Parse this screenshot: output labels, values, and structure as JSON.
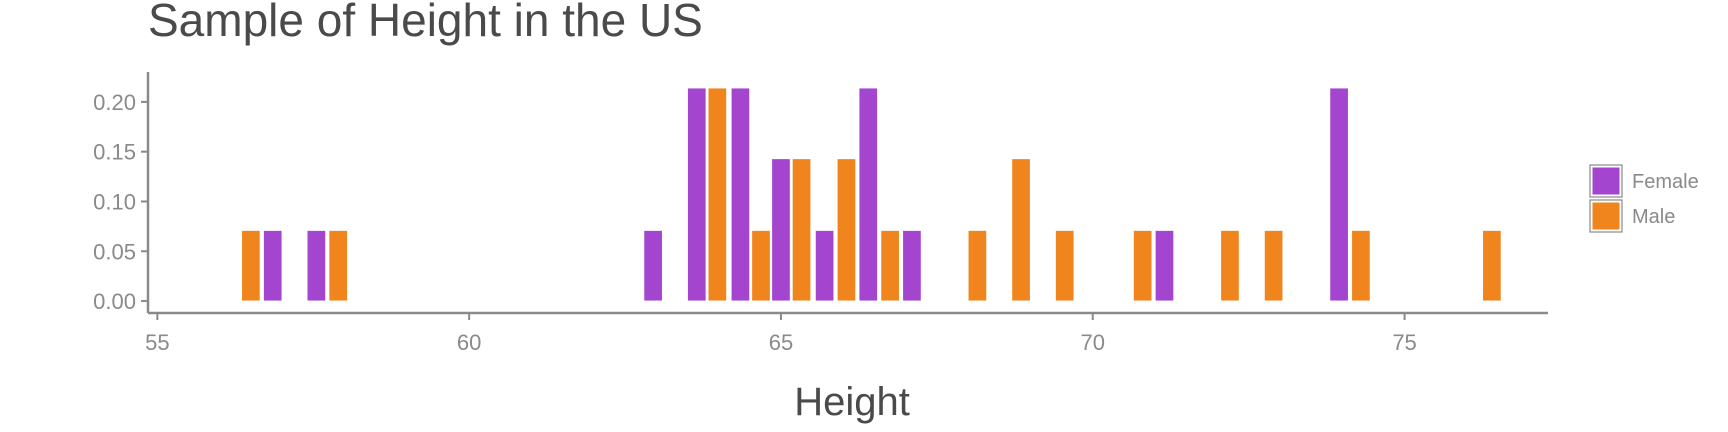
{
  "chart_data": {
    "type": "bar",
    "title": "Sample of Height in the US",
    "xlabel": "Height",
    "ylabel": "",
    "xlim": [
      54.85,
      77.3
    ],
    "ylim": [
      -0.012,
      0.23
    ],
    "xticks": [
      55,
      60,
      65,
      70,
      75
    ],
    "yticks": [
      0.0,
      0.05,
      0.1,
      0.15,
      0.2
    ],
    "ytick_labels": [
      "0.00",
      "0.05",
      "0.10",
      "0.15",
      "0.20"
    ],
    "grid": false,
    "legend_position": "right",
    "bar_width": 0.3,
    "series": [
      {
        "name": "Female",
        "color": "#a445cf",
        "x": [
          56.85,
          57.55,
          62.95,
          63.65,
          64.35,
          65.0,
          65.7,
          66.4,
          67.1,
          71.15,
          73.95
        ],
        "values": [
          0.071,
          0.071,
          0.071,
          0.214,
          0.214,
          0.143,
          0.071,
          0.214,
          0.071,
          0.071,
          0.214
        ]
      },
      {
        "name": "Male",
        "color": "#f0851e",
        "x": [
          56.5,
          57.9,
          63.98,
          64.68,
          65.33,
          66.05,
          66.75,
          68.15,
          68.85,
          69.55,
          70.8,
          72.2,
          72.9,
          74.3,
          76.4
        ],
        "values": [
          0.071,
          0.071,
          0.214,
          0.071,
          0.143,
          0.143,
          0.071,
          0.071,
          0.143,
          0.071,
          0.071,
          0.071,
          0.071,
          0.071,
          0.071
        ]
      }
    ]
  }
}
